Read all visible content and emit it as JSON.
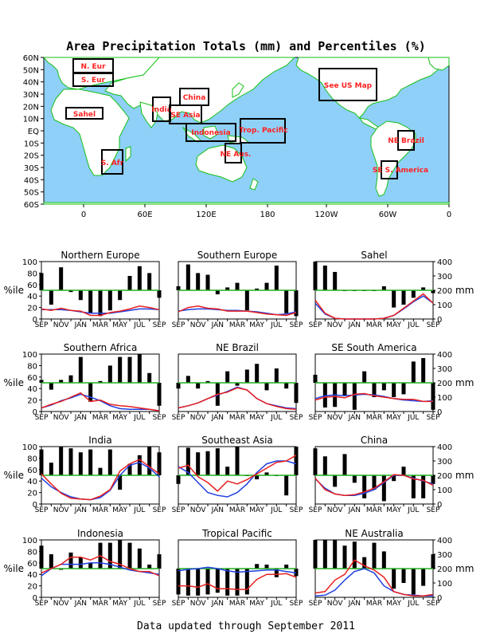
{
  "page": {
    "title": "Area Precipitation Totals (mm) and Percentiles (%)",
    "footer": "Data updated through September 2011"
  },
  "colors": {
    "ocean": "#8fd0f8",
    "land": "#ffffff",
    "coast": "#16c016",
    "box": "#000000",
    "region_label": "#ff2020",
    "ref_line": "#20b020",
    "observed": "#e82020",
    "normal": "#2040e0",
    "bar": "#000000"
  },
  "map": {
    "lat_labels": [
      "60N",
      "50N",
      "40N",
      "30N",
      "20N",
      "10N",
      "EQ",
      "10S",
      "20S",
      "30S",
      "40S",
      "50S",
      "60S"
    ],
    "lon_labels": [
      "0",
      "60E",
      "120E",
      "180",
      "120W",
      "60W",
      "0"
    ],
    "regions": [
      {
        "key": "n_eur",
        "label": "N. Eur"
      },
      {
        "key": "s_eur",
        "label": "S. Eur"
      },
      {
        "key": "sahel",
        "label": "Sahel"
      },
      {
        "key": "india",
        "label": "India"
      },
      {
        "key": "china",
        "label": "China"
      },
      {
        "key": "se_asia",
        "label": "SE Asia"
      },
      {
        "key": "indonesia",
        "label": "Indonesia"
      },
      {
        "key": "trop_pac",
        "label": "Trop. Pacific"
      },
      {
        "key": "ne_aus",
        "label": "NE Aus."
      },
      {
        "key": "s_afr",
        "label": "S. Afr"
      },
      {
        "key": "us",
        "label": "See US Map"
      },
      {
        "key": "ne_brazil",
        "label": "NE Brazil"
      },
      {
        "key": "se_sam",
        "label": "SE S. America"
      }
    ]
  },
  "axes": {
    "pct_label": "%ile",
    "mm_label": "mm",
    "pct_ticks": [
      "0",
      "20",
      "40",
      "60",
      "80",
      "100"
    ],
    "mm_ticks": [
      "0",
      "100",
      "200",
      "300",
      "400"
    ],
    "month_ticks": [
      "SEP",
      "NOV",
      "JAN",
      "MAR",
      "MAY",
      "JUL",
      "SEP"
    ]
  },
  "chart_data": [
    {
      "type": "bar+line",
      "title": "Northern Europe",
      "months": [
        "Sep",
        "Oct",
        "Nov",
        "Dec",
        "Jan",
        "Feb",
        "Mar",
        "Apr",
        "May",
        "Jun",
        "Jul",
        "Aug",
        "Sep"
      ],
      "percentile": [
        80,
        25,
        90,
        47,
        33,
        10,
        5,
        15,
        33,
        75,
        92,
        80,
        37
      ],
      "observed_mm": [
        70,
        60,
        75,
        60,
        55,
        25,
        25,
        45,
        55,
        70,
        90,
        80,
        65
      ],
      "normal_mm": [
        65,
        65,
        65,
        60,
        50,
        40,
        40,
        40,
        50,
        60,
        70,
        70,
        65
      ]
    },
    {
      "type": "bar+line",
      "title": "Southern Europe",
      "months": [
        "Sep",
        "Oct",
        "Nov",
        "Dec",
        "Jan",
        "Feb",
        "Mar",
        "Apr",
        "May",
        "Jun",
        "Jul",
        "Aug",
        "Sep"
      ],
      "percentile": [
        57,
        95,
        80,
        77,
        43,
        55,
        63,
        15,
        53,
        63,
        93,
        10,
        5
      ],
      "observed_mm": [
        50,
        80,
        90,
        75,
        70,
        55,
        55,
        55,
        45,
        35,
        30,
        25,
        45
      ],
      "normal_mm": [
        55,
        65,
        70,
        70,
        65,
        60,
        60,
        55,
        50,
        40,
        30,
        35,
        50
      ]
    },
    {
      "type": "bar+line",
      "title": "Sahel",
      "months": [
        "Sep",
        "Oct",
        "Nov",
        "Dec",
        "Jan",
        "Feb",
        "Mar",
        "Apr",
        "May",
        "Jun",
        "Jul",
        "Aug",
        "Sep"
      ],
      "percentile": [
        100,
        93,
        82,
        50,
        50,
        50,
        50,
        57,
        20,
        25,
        37,
        55,
        45
      ],
      "observed_mm": [
        130,
        40,
        5,
        0,
        0,
        0,
        0,
        5,
        25,
        75,
        125,
        175,
        110
      ],
      "normal_mm": [
        110,
        35,
        5,
        0,
        0,
        0,
        0,
        5,
        25,
        70,
        120,
        160,
        110
      ]
    },
    {
      "type": "bar+line",
      "title": "Southern Africa",
      "months": [
        "Sep",
        "Oct",
        "Nov",
        "Dec",
        "Jan",
        "Feb",
        "Mar",
        "Apr",
        "May",
        "Jun",
        "Jul",
        "Aug",
        "Sep"
      ],
      "percentile": [
        55,
        38,
        55,
        63,
        95,
        17,
        53,
        80,
        95,
        95,
        100,
        67,
        10
      ],
      "observed_mm": [
        25,
        50,
        70,
        100,
        130,
        70,
        80,
        50,
        40,
        35,
        25,
        15,
        5
      ],
      "normal_mm": [
        25,
        45,
        75,
        95,
        120,
        100,
        75,
        40,
        20,
        15,
        15,
        15,
        5
      ]
    },
    {
      "type": "bar+line",
      "title": "NE Brazil",
      "months": [
        "Sep",
        "Oct",
        "Nov",
        "Dec",
        "Jan",
        "Feb",
        "Mar",
        "Apr",
        "May",
        "Jun",
        "Jul",
        "Aug",
        "Sep"
      ],
      "percentile": [
        40,
        62,
        40,
        53,
        10,
        70,
        45,
        73,
        83,
        37,
        75,
        40,
        15
      ],
      "observed_mm": [
        25,
        40,
        60,
        90,
        120,
        135,
        165,
        150,
        90,
        55,
        35,
        20,
        15
      ],
      "normal_mm": [
        25,
        40,
        60,
        90,
        115,
        140,
        170,
        150,
        90,
        55,
        40,
        25,
        20
      ]
    },
    {
      "type": "bar+line",
      "title": "SE South America",
      "months": [
        "Sep",
        "Oct",
        "Nov",
        "Dec",
        "Jan",
        "Feb",
        "Mar",
        "Apr",
        "May",
        "Jun",
        "Jul",
        "Aug",
        "Sep"
      ],
      "percentile": [
        64,
        7,
        8,
        28,
        3,
        70,
        25,
        37,
        25,
        30,
        87,
        93,
        3
      ],
      "observed_mm": [
        80,
        100,
        105,
        95,
        120,
        125,
        110,
        100,
        90,
        85,
        85,
        70,
        70
      ],
      "normal_mm": [
        90,
        110,
        115,
        110,
        115,
        120,
        115,
        105,
        90,
        80,
        75,
        70,
        75
      ]
    },
    {
      "type": "bar+line",
      "title": "India",
      "months": [
        "Sep",
        "Oct",
        "Nov",
        "Dec",
        "Jan",
        "Feb",
        "Mar",
        "Apr",
        "May",
        "Jun",
        "Jul",
        "Aug",
        "Sep"
      ],
      "percentile": [
        95,
        72,
        100,
        97,
        90,
        95,
        63,
        95,
        25,
        70,
        85,
        100,
        90
      ],
      "observed_mm": [
        210,
        140,
        75,
        40,
        35,
        30,
        55,
        100,
        230,
        280,
        310,
        260,
        210
      ],
      "normal_mm": [
        180,
        120,
        80,
        50,
        35,
        30,
        45,
        95,
        200,
        270,
        290,
        250,
        190
      ]
    },
    {
      "type": "bar+line",
      "title": "Southeast Asia",
      "months": [
        "Sep",
        "Oct",
        "Nov",
        "Dec",
        "Jan",
        "Feb",
        "Mar",
        "Apr",
        "May",
        "Jun",
        "Jul",
        "Aug",
        "Sep"
      ],
      "percentile": [
        35,
        98,
        90,
        92,
        97,
        65,
        100,
        50,
        43,
        55,
        50,
        15,
        100
      ],
      "observed_mm": [
        250,
        270,
        190,
        150,
        90,
        160,
        140,
        170,
        210,
        250,
        290,
        300,
        340
      ],
      "normal_mm": [
        260,
        220,
        150,
        80,
        60,
        50,
        80,
        140,
        220,
        280,
        300,
        300,
        280
      ]
    },
    {
      "type": "bar+line",
      "title": "China",
      "months": [
        "Sep",
        "Oct",
        "Nov",
        "Dec",
        "Jan",
        "Feb",
        "Mar",
        "Apr",
        "May",
        "Jun",
        "Jul",
        "Aug",
        "Sep"
      ],
      "percentile": [
        97,
        83,
        30,
        87,
        37,
        10,
        25,
        5,
        40,
        65,
        10,
        10,
        35
      ],
      "observed_mm": [
        180,
        100,
        70,
        60,
        65,
        85,
        110,
        155,
        205,
        200,
        175,
        165,
        130
      ],
      "normal_mm": [
        175,
        110,
        70,
        60,
        60,
        75,
        100,
        150,
        200,
        200,
        180,
        160,
        140
      ]
    },
    {
      "type": "bar+line",
      "title": "Indonesia",
      "months": [
        "Sep",
        "Oct",
        "Nov",
        "Dec",
        "Jan",
        "Feb",
        "Mar",
        "Apr",
        "May",
        "Jun",
        "Jul",
        "Aug",
        "Sep"
      ],
      "percentile": [
        90,
        75,
        48,
        78,
        70,
        60,
        95,
        95,
        100,
        95,
        85,
        57,
        75
      ],
      "observed_mm": [
        170,
        200,
        230,
        280,
        280,
        260,
        290,
        250,
        230,
        200,
        180,
        180,
        150
      ],
      "normal_mm": [
        150,
        200,
        230,
        230,
        230,
        240,
        240,
        230,
        210,
        190,
        180,
        170,
        160
      ]
    },
    {
      "type": "bar+line",
      "title": "Tropical Pacific",
      "months": [
        "Sep",
        "Oct",
        "Nov",
        "Dec",
        "Jan",
        "Feb",
        "Mar",
        "Apr",
        "May",
        "Jun",
        "Jul",
        "Aug",
        "Sep"
      ],
      "percentile": [
        5,
        3,
        3,
        5,
        8,
        3,
        3,
        5,
        58,
        57,
        35,
        57,
        37
      ],
      "observed_mm": [
        80,
        80,
        70,
        95,
        60,
        60,
        55,
        55,
        125,
        160,
        160,
        165,
        140
      ],
      "normal_mm": [
        185,
        195,
        200,
        210,
        200,
        185,
        175,
        180,
        185,
        190,
        190,
        180,
        170
      ]
    },
    {
      "type": "bar+line",
      "title": "NE Australia",
      "months": [
        "Sep",
        "Oct",
        "Nov",
        "Dec",
        "Jan",
        "Feb",
        "Mar",
        "Apr",
        "May",
        "Jun",
        "Jul",
        "Aug",
        "Sep"
      ],
      "percentile": [
        100,
        100,
        100,
        90,
        97,
        70,
        95,
        80,
        15,
        25,
        5,
        20,
        75
      ],
      "observed_mm": [
        30,
        40,
        120,
        160,
        260,
        220,
        190,
        140,
        40,
        20,
        10,
        10,
        20
      ],
      "normal_mm": [
        10,
        15,
        50,
        120,
        180,
        200,
        170,
        80,
        40,
        20,
        15,
        10,
        10
      ]
    }
  ]
}
